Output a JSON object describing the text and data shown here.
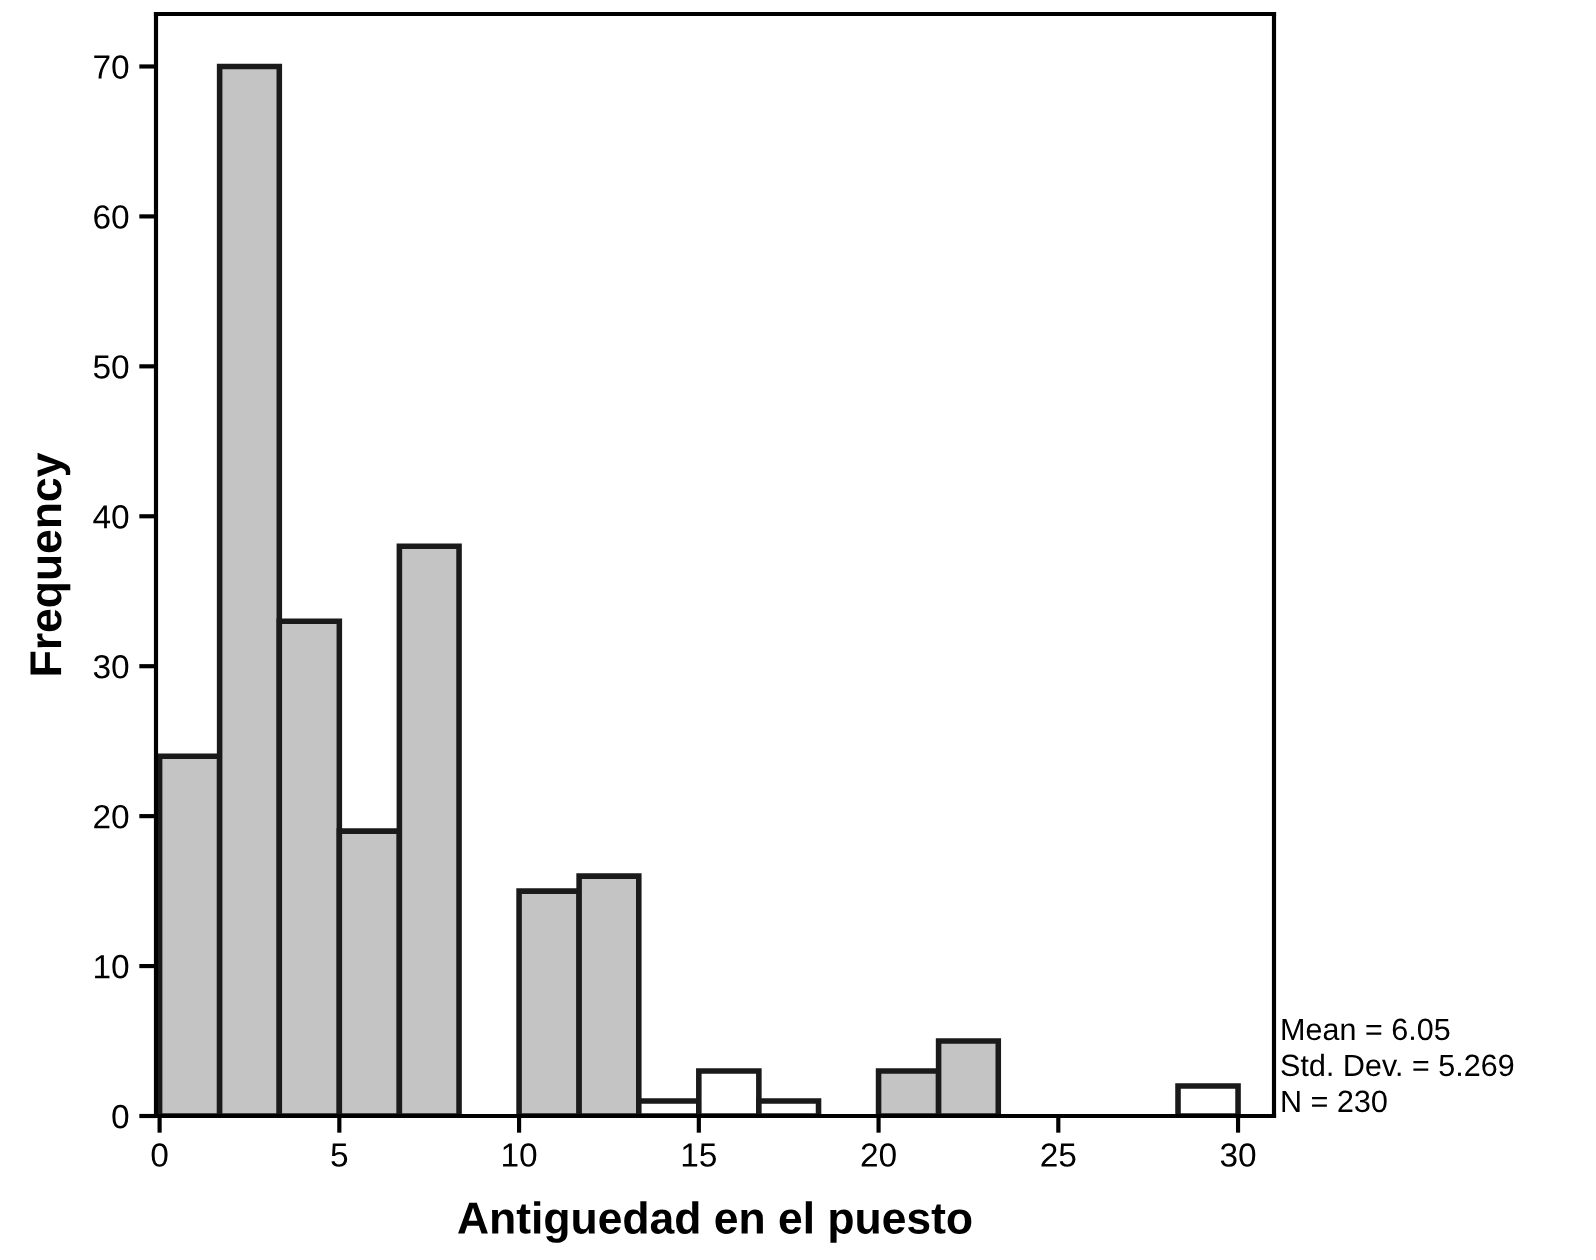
{
  "chart_data": {
    "type": "histogram",
    "xlabel": "Antiguedad en el puesto",
    "ylabel": "Frequency",
    "bins": [
      0,
      1.67,
      3.33,
      5,
      6.67,
      8.33,
      10,
      11.67,
      13.33,
      15,
      16.67,
      18.33,
      20,
      21.67,
      23.33,
      25,
      26.67,
      28.33,
      30
    ],
    "values": [
      24,
      70,
      33,
      19,
      38,
      0,
      15,
      16,
      1,
      3,
      1,
      0,
      3,
      5,
      0,
      0,
      0,
      2
    ],
    "colors": [
      "#c4c4c4",
      "#c4c4c4",
      "#c4c4c4",
      "#c4c4c4",
      "#c4c4c4",
      "#ffffff",
      "#c4c4c4",
      "#c4c4c4",
      "#ffffff",
      "#ffffff",
      "#ffffff",
      "#ffffff",
      "#c4c4c4",
      "#c4c4c4",
      "#ffffff",
      "#ffffff",
      "#ffffff",
      "#ffffff"
    ],
    "xlim": [
      -0.1,
      31
    ],
    "ylim": [
      0,
      73.5
    ],
    "xticks": [
      0,
      5,
      10,
      15,
      20,
      25,
      30
    ],
    "yticks": [
      0,
      10,
      20,
      30,
      40,
      50,
      60,
      70
    ],
    "grid": false,
    "annotations": [
      "Mean = 6.05",
      "Std. Dev. = 5.269",
      "N = 230"
    ]
  }
}
